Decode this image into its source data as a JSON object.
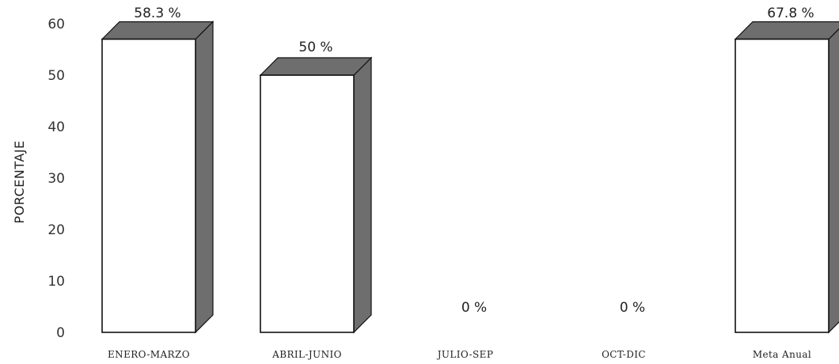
{
  "chart_data": {
    "type": "bar",
    "categories": [
      "ENERO-MARZO",
      "ABRIL-JUNIO",
      "JULIO-SEP",
      "OCT-DIC",
      "Meta Anual"
    ],
    "values": [
      58.3,
      50,
      0,
      0,
      67.8
    ],
    "data_labels": [
      "58.3 %",
      "50 %",
      "0 %",
      "0 %",
      "67.8 %"
    ],
    "ylabel": "PORCENTAJE",
    "yticks": [
      0,
      10,
      20,
      30,
      40,
      50,
      60
    ],
    "ylim": [
      0,
      60
    ],
    "grid": false,
    "style": "3d-bar",
    "bar_face_color": "#ffffff",
    "bar_side_color": "#6e6e6e",
    "bar_edge_color": "#111111"
  }
}
